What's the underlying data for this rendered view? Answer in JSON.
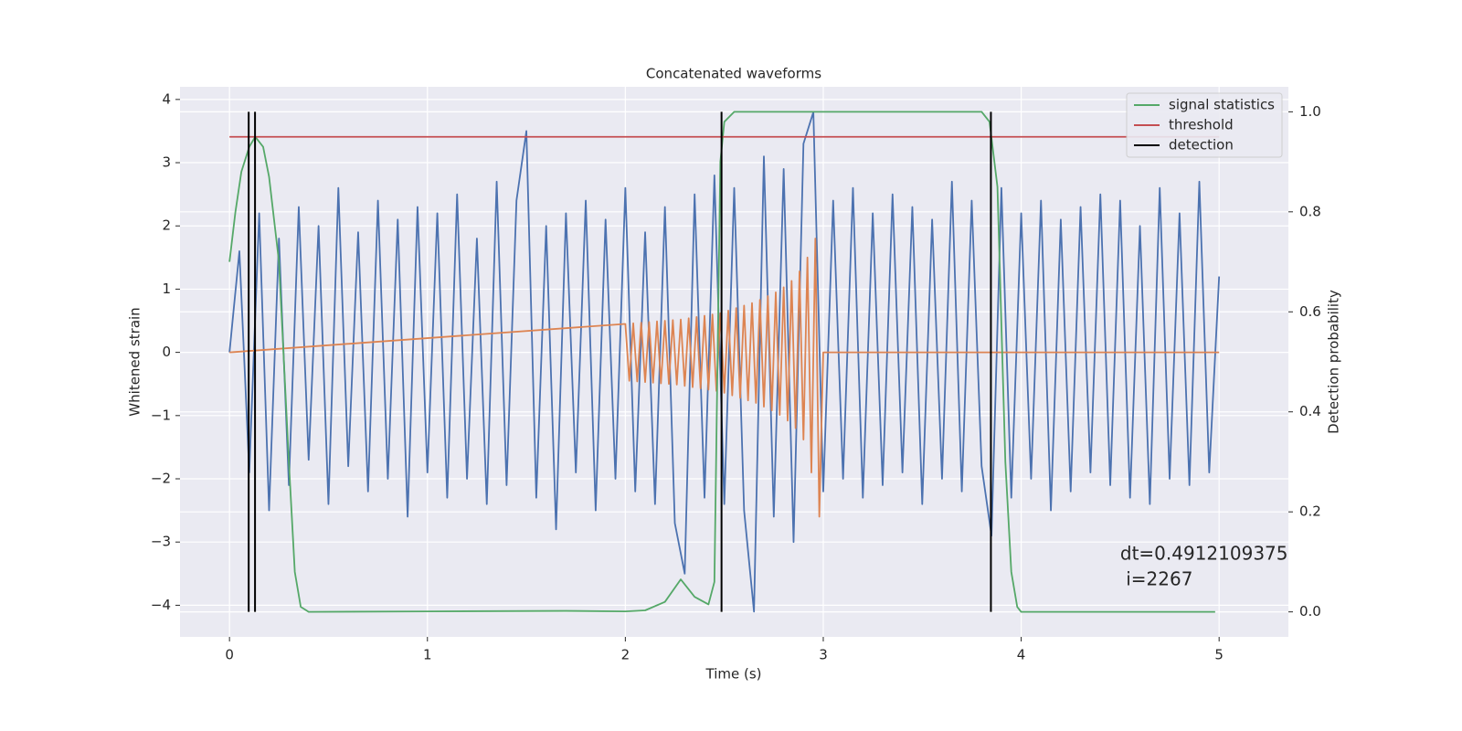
{
  "chart_data": {
    "type": "line",
    "title": "Concatenated waveforms",
    "xlabel": "Time (s)",
    "ylabel": "Whitened strain",
    "y2label": "Detection probability",
    "xlim": [
      -0.25,
      5.35
    ],
    "ylim": [
      -4.5,
      4.2
    ],
    "y2lim": [
      -0.05,
      1.05
    ],
    "xticks": [
      0,
      1,
      2,
      3,
      4,
      5
    ],
    "yticks": [
      {
        "value": -4,
        "label": "−4"
      },
      {
        "value": -3,
        "label": "−3"
      },
      {
        "value": -2,
        "label": "−2"
      },
      {
        "value": -1,
        "label": "−1"
      },
      0,
      1,
      2,
      3,
      4
    ],
    "y2ticks": [
      {
        "value": 0,
        "label": "0.0"
      },
      0.2,
      0.4,
      0.6,
      0.8,
      {
        "value": 1,
        "label": "1.0"
      }
    ],
    "grid": true,
    "background": "#eaeaf2",
    "legend": "upper right",
    "series": [
      {
        "color": "#4c72b0",
        "x": [
          0,
          0.05,
          0.1,
          0.15,
          0.2,
          0.25,
          0.3,
          0.35,
          0.4,
          0.45,
          0.5,
          0.55,
          0.6,
          0.65,
          0.7,
          0.75,
          0.8,
          0.85,
          0.9,
          0.95,
          1,
          1.05,
          1.1,
          1.15,
          1.2,
          1.25,
          1.3,
          1.35,
          1.4,
          1.45,
          1.5,
          1.55,
          1.6,
          1.65,
          1.7,
          1.75,
          1.8,
          1.85,
          1.9,
          1.95,
          2,
          2.05,
          2.1,
          2.15,
          2.2,
          2.25,
          2.3,
          2.35,
          2.4,
          2.45,
          2.5,
          2.55,
          2.6,
          2.65,
          2.7,
          2.75,
          2.8,
          2.85,
          2.9,
          2.95,
          3,
          3.05,
          3.1,
          3.15,
          3.2,
          3.25,
          3.3,
          3.35,
          3.4,
          3.45,
          3.5,
          3.55,
          3.6,
          3.65,
          3.7,
          3.75,
          3.8,
          3.85,
          3.9,
          3.95,
          4,
          4.05,
          4.1,
          4.15,
          4.2,
          4.25,
          4.3,
          4.35,
          4.4,
          4.45,
          4.5,
          4.55,
          4.6,
          4.65,
          4.7,
          4.75,
          4.8,
          4.85,
          4.9,
          4.95,
          5
        ],
        "values": [
          0,
          1.6,
          -1.9,
          2.2,
          -2.5,
          1.8,
          -2.1,
          2.3,
          -1.7,
          2.0,
          -2.4,
          2.6,
          -1.8,
          1.9,
          -2.2,
          2.4,
          -2.0,
          2.1,
          -2.6,
          2.3,
          -1.9,
          2.2,
          -2.3,
          2.5,
          -2.0,
          1.8,
          -2.4,
          2.7,
          -2.1,
          2.4,
          3.5,
          -2.3,
          2.0,
          -2.8,
          2.2,
          -1.9,
          2.4,
          -2.5,
          2.1,
          -2.0,
          2.6,
          -2.2,
          1.9,
          -2.4,
          2.3,
          -2.7,
          -3.5,
          2.5,
          -2.3,
          2.8,
          -2.4,
          2.6,
          -2.5,
          -4.1,
          3.1,
          -2.6,
          2.9,
          -3.0,
          3.3,
          3.8,
          -2.2,
          2.4,
          -2.0,
          2.6,
          -2.3,
          2.2,
          -2.1,
          2.5,
          -1.9,
          2.3,
          -2.4,
          2.1,
          -2.0,
          2.7,
          -2.2,
          2.4,
          -1.8,
          -2.9,
          2.6,
          -2.3,
          2.2,
          -2.0,
          2.4,
          -2.5,
          2.1,
          -2.2,
          2.3,
          -1.9,
          2.5,
          -2.1,
          2.4,
          -2.3,
          2.0,
          -2.4,
          2.6,
          -2.0,
          2.2,
          -2.1,
          2.7,
          -1.9,
          1.2
        ]
      },
      {
        "color": "#dd8452",
        "x": [
          0,
          2,
          2.02,
          2.04,
          2.06,
          2.08,
          2.1,
          2.12,
          2.14,
          2.16,
          2.18,
          2.2,
          2.22,
          2.24,
          2.26,
          2.28,
          2.3,
          2.32,
          2.34,
          2.36,
          2.38,
          2.4,
          2.42,
          2.44,
          2.46,
          2.48,
          2.5,
          2.52,
          2.54,
          2.56,
          2.58,
          2.6,
          2.62,
          2.64,
          2.66,
          2.68,
          2.7,
          2.72,
          2.74,
          2.76,
          2.78,
          2.8,
          2.82,
          2.84,
          2.86,
          2.88,
          2.9,
          2.92,
          2.94,
          2.96,
          2.98,
          3,
          5
        ],
        "values": [
          0,
          0.45,
          -0.45,
          0.46,
          -0.46,
          0.47,
          -0.47,
          0.48,
          -0.48,
          0.49,
          -0.49,
          0.5,
          -0.5,
          0.51,
          -0.51,
          0.52,
          -0.53,
          0.54,
          -0.55,
          0.56,
          -0.57,
          0.58,
          -0.59,
          0.6,
          -0.61,
          0.62,
          -0.64,
          0.66,
          -0.68,
          0.7,
          -0.72,
          0.74,
          -0.76,
          0.78,
          -0.8,
          0.83,
          -0.86,
          0.89,
          -0.92,
          0.95,
          -0.99,
          1.03,
          -1.08,
          1.13,
          -1.2,
          1.28,
          -1.38,
          1.5,
          -1.9,
          1.8,
          -2.6,
          0,
          0
        ]
      },
      {
        "name": "signal statistics",
        "color": "#55a868",
        "axis": "y2",
        "x": [
          0,
          0.03,
          0.06,
          0.1,
          0.13,
          0.17,
          0.2,
          0.25,
          0.3,
          0.33,
          0.36,
          0.4,
          1,
          1.7,
          2,
          2.1,
          2.2,
          2.28,
          2.35,
          2.42,
          2.45,
          2.48,
          2.5,
          2.55,
          3.8,
          3.84,
          3.88,
          3.92,
          3.95,
          3.98,
          4,
          4.98
        ],
        "values": [
          0.7,
          0.8,
          0.88,
          0.93,
          0.95,
          0.93,
          0.87,
          0.7,
          0.3,
          0.08,
          0.01,
          0,
          0.001,
          0.002,
          0.001,
          0.003,
          0.02,
          0.065,
          0.03,
          0.015,
          0.06,
          0.9,
          0.98,
          1,
          1,
          0.98,
          0.85,
          0.3,
          0.08,
          0.01,
          0,
          0
        ]
      },
      {
        "name": "threshold",
        "color": "#c44e52",
        "axis": "y2",
        "x": [
          0,
          5
        ],
        "values": [
          0.95,
          0.95
        ]
      }
    ],
    "vlines": {
      "name": "detection",
      "color": "#000000",
      "axis": "y2",
      "ymin": 0,
      "ymax": 1,
      "x": [
        0.097,
        0.129,
        2.486,
        3.847
      ]
    },
    "annotation": {
      "text": [
        "dt=0.4912109375",
        " i=2267"
      ],
      "x": 4.5,
      "y": -3.2
    }
  }
}
